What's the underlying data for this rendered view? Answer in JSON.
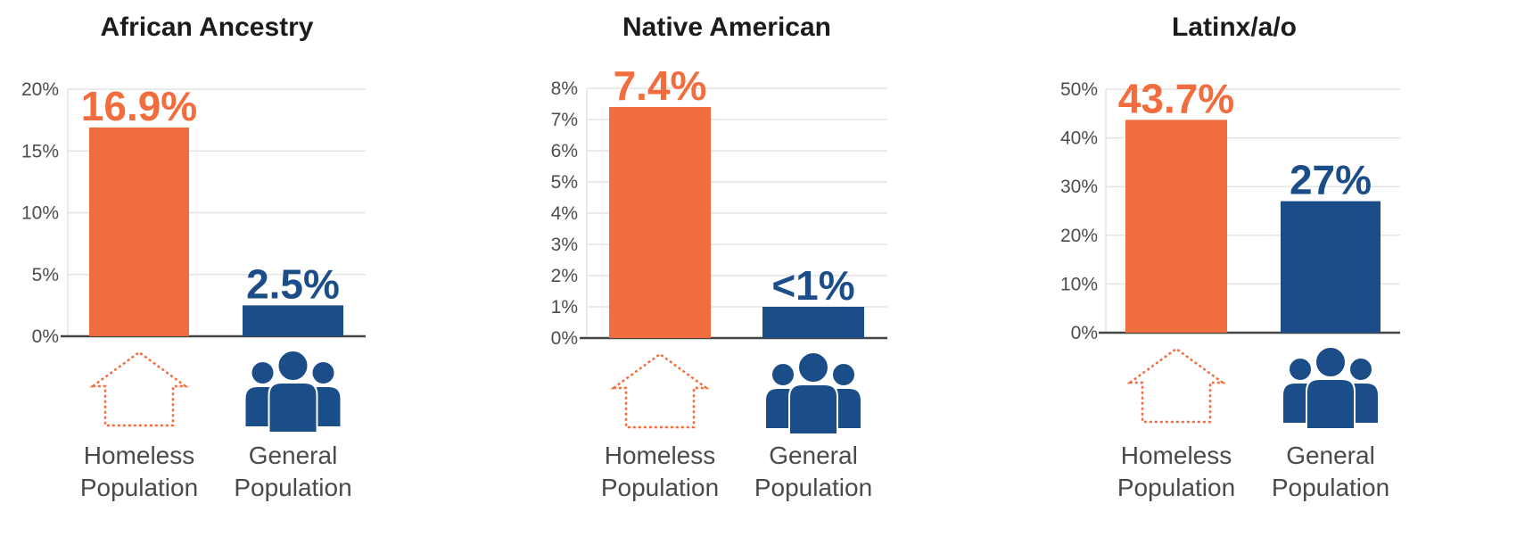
{
  "chart_data": [
    {
      "type": "bar",
      "title": "African Ancestry",
      "categories": [
        "Homeless Population",
        "General Population"
      ],
      "category_lines": [
        [
          "Homeless",
          "Population"
        ],
        [
          "General",
          "Population"
        ]
      ],
      "values": [
        16.9,
        2.5
      ],
      "data_labels": [
        "16.9%",
        "2.5%"
      ],
      "ylim": [
        0,
        20
      ],
      "yticks": [
        0,
        5,
        10,
        15,
        20
      ],
      "ytick_labels": [
        "0%",
        "5%",
        "10%",
        "15%",
        "20%"
      ],
      "icons": [
        "house-outline-icon",
        "people-group-icon"
      ],
      "grid": true
    },
    {
      "type": "bar",
      "title": "Native American",
      "categories": [
        "Homeless Population",
        "General Population"
      ],
      "category_lines": [
        [
          "Homeless",
          "Population"
        ],
        [
          "General",
          "Population"
        ]
      ],
      "values": [
        7.4,
        1
      ],
      "data_labels": [
        "7.4%",
        "<1%"
      ],
      "ylim": [
        0,
        8
      ],
      "yticks": [
        0,
        1,
        2,
        3,
        4,
        5,
        6,
        7,
        8
      ],
      "ytick_labels": [
        "0%",
        "1%",
        "2%",
        "3%",
        "4%",
        "5%",
        "6%",
        "7%",
        "8%"
      ],
      "icons": [
        "house-outline-icon",
        "people-group-icon"
      ],
      "grid": true
    },
    {
      "type": "bar",
      "title": "Latinx/a/o",
      "categories": [
        "Homeless Population",
        "General Population"
      ],
      "category_lines": [
        [
          "Homeless",
          "Population"
        ],
        [
          "General",
          "Population"
        ]
      ],
      "values": [
        43.7,
        27
      ],
      "data_labels": [
        "43.7%",
        "27%"
      ],
      "ylim": [
        0,
        50
      ],
      "yticks": [
        0,
        10,
        20,
        30,
        40,
        50
      ],
      "ytick_labels": [
        "0%",
        "10%",
        "20%",
        "30%",
        "40%",
        "50%"
      ],
      "icons": [
        "house-outline-icon",
        "people-group-icon"
      ],
      "grid": true
    }
  ],
  "colors": {
    "homeless": "#f26d3d",
    "general": "#1b4d88",
    "axis": "#444444",
    "grid": "#e4e4e4"
  }
}
